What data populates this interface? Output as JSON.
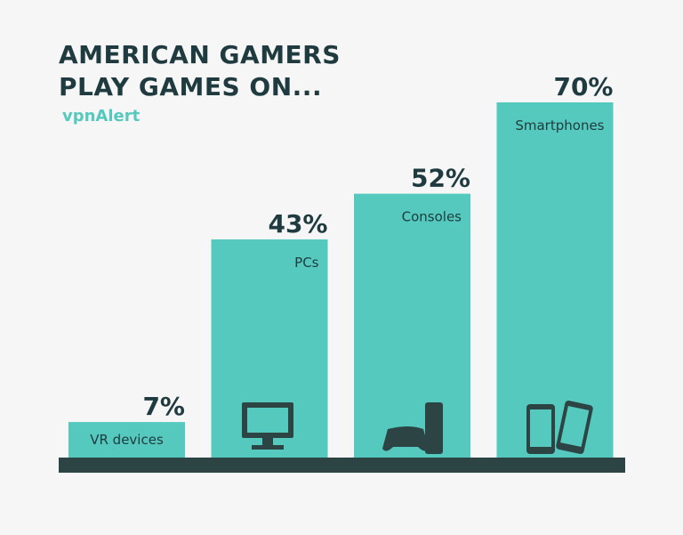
{
  "chart_data": {
    "type": "bar",
    "title": "AMERICAN GAMERS PLAY GAMES ON...",
    "logo": "vpnAlert",
    "categories": [
      "VR devices",
      "PCs",
      "Consoles",
      "Smartphones"
    ],
    "values": [
      7,
      43,
      52,
      70
    ],
    "value_labels": [
      "7%",
      "43%",
      "52%",
      "70%"
    ],
    "color": "#55c9be"
  }
}
